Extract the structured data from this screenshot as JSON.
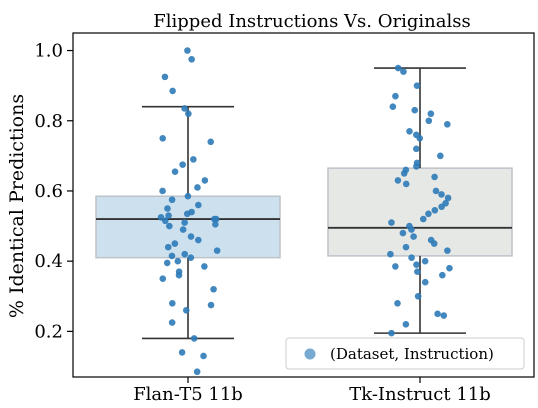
{
  "chart_data": {
    "type": "boxplot",
    "title": "Flipped Instructions Vs. Originalss",
    "ylabel": "% Identical Predictions",
    "xlabel": "",
    "ylim": [
      0.07,
      1.05
    ],
    "yticks": [
      0.2,
      0.4,
      0.6,
      0.8,
      1.0
    ],
    "ytick_labels": [
      "0.2",
      "0.4",
      "0.6",
      "0.8",
      "1.0"
    ],
    "categories": [
      "Flan-T5 11b",
      "Tk-Instruct 11b"
    ],
    "legend": {
      "label": "(Dataset, Instruction)",
      "placement": "lower right"
    },
    "colors": {
      "box_fill": [
        "#cde0ee",
        "#e6e8e5"
      ],
      "box_edge": "#bcc3c9",
      "whisker": "#333333",
      "point": "#2e7bb8"
    },
    "boxes": [
      {
        "category": "Flan-T5 11b",
        "whisker_low": 0.18,
        "q1": 0.41,
        "median": 0.52,
        "q3": 0.585,
        "whisker_high": 0.84
      },
      {
        "category": "Tk-Instruct 11b",
        "whisker_low": 0.195,
        "q1": 0.415,
        "median": 0.495,
        "q3": 0.665,
        "whisker_high": 0.95
      }
    ],
    "points": [
      {
        "category": "Flan-T5 11b",
        "values": [
          1.0,
          0.975,
          0.925,
          0.885,
          0.835,
          0.82,
          0.75,
          0.74,
          0.69,
          0.675,
          0.655,
          0.63,
          0.61,
          0.6,
          0.585,
          0.575,
          0.56,
          0.55,
          0.54,
          0.535,
          0.53,
          0.525,
          0.52,
          0.52,
          0.515,
          0.51,
          0.505,
          0.5,
          0.49,
          0.47,
          0.46,
          0.45,
          0.44,
          0.43,
          0.42,
          0.415,
          0.41,
          0.4,
          0.395,
          0.385,
          0.37,
          0.36,
          0.35,
          0.32,
          0.28,
          0.275,
          0.26,
          0.225,
          0.18,
          0.14,
          0.13,
          0.085
        ]
      },
      {
        "category": "Tk-Instruct 11b",
        "values": [
          0.95,
          0.94,
          0.9,
          0.87,
          0.84,
          0.83,
          0.82,
          0.8,
          0.79,
          0.77,
          0.76,
          0.75,
          0.72,
          0.7,
          0.68,
          0.67,
          0.66,
          0.65,
          0.64,
          0.63,
          0.62,
          0.6,
          0.59,
          0.58,
          0.565,
          0.555,
          0.545,
          0.535,
          0.52,
          0.51,
          0.5,
          0.49,
          0.48,
          0.47,
          0.46,
          0.45,
          0.44,
          0.43,
          0.42,
          0.41,
          0.4,
          0.39,
          0.385,
          0.38,
          0.37,
          0.36,
          0.34,
          0.3,
          0.28,
          0.25,
          0.245,
          0.22,
          0.195
        ]
      }
    ]
  }
}
